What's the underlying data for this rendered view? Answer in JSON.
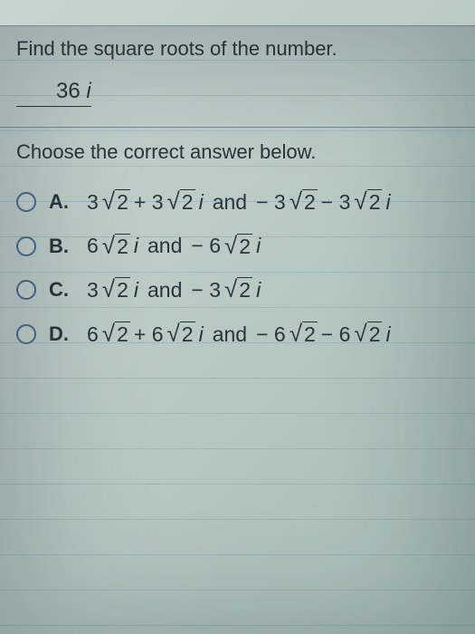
{
  "question": {
    "prompt": "Find the square roots of the number.",
    "expression_num": "36",
    "expression_i": "i",
    "instruction": "Choose the correct answer below."
  },
  "options": [
    {
      "label": "A.",
      "parts": {
        "c1": "3",
        "r1": "2",
        "p1": "+ 3",
        "r2": "2",
        "i1": "i",
        "and": "and",
        "m1": "− 3",
        "r3": "2",
        "m2": "− 3",
        "r4": "2",
        "i2": "i"
      }
    },
    {
      "label": "B.",
      "parts": {
        "c1": "6",
        "r1": "2",
        "i1": "i",
        "and": "and",
        "m1": "− 6",
        "r2": "2",
        "i2": "i"
      }
    },
    {
      "label": "C.",
      "parts": {
        "c1": "3",
        "r1": "2",
        "i1": "i",
        "and": "and",
        "m1": "− 3",
        "r2": "2",
        "i2": "i"
      }
    },
    {
      "label": "D.",
      "parts": {
        "c1": "6",
        "r1": "2",
        "p1": "+ 6",
        "r2": "2",
        "i1": "i",
        "and": "and",
        "m1": "− 6",
        "r3": "2",
        "m2": "− 6",
        "r4": "2",
        "i2": "i"
      }
    }
  ],
  "styles": {
    "radio_border_color": "#4a6a88",
    "text_color": "#2a3438",
    "bg_gradient": [
      "#c8d4d0",
      "#b8c8c2",
      "#a8bab5"
    ]
  }
}
